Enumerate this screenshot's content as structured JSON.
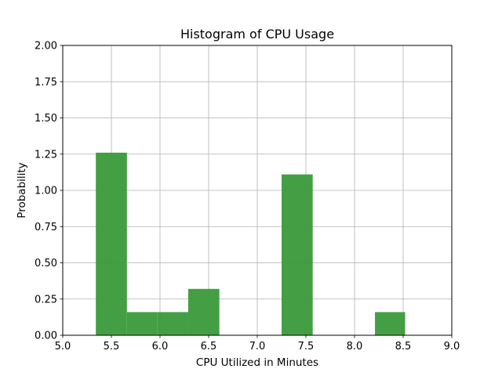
{
  "chart_data": {
    "type": "bar",
    "title": "Histogram of CPU Usage",
    "xlabel": "CPU Utilized in Minutes",
    "ylabel": "Probability",
    "xlim": [
      5.0,
      9.0
    ],
    "ylim": [
      0.0,
      2.0
    ],
    "xticks": [
      "5.0",
      "5.5",
      "6.0",
      "6.5",
      "7.0",
      "7.5",
      "8.0",
      "8.5",
      "9.0"
    ],
    "yticks": [
      "0.00",
      "0.25",
      "0.50",
      "0.75",
      "1.00",
      "1.25",
      "1.50",
      "1.75",
      "2.00"
    ],
    "grid": true,
    "bar_color": "#3a9a3a",
    "bins": [
      {
        "start": 5.34,
        "end": 5.66,
        "value": 1.26
      },
      {
        "start": 5.66,
        "end": 5.97,
        "value": 0.16
      },
      {
        "start": 5.97,
        "end": 6.29,
        "value": 0.16
      },
      {
        "start": 6.29,
        "end": 6.61,
        "value": 0.32
      },
      {
        "start": 6.61,
        "end": 6.93,
        "value": 0.0
      },
      {
        "start": 6.93,
        "end": 7.25,
        "value": 0.0
      },
      {
        "start": 7.25,
        "end": 7.57,
        "value": 1.11
      },
      {
        "start": 7.57,
        "end": 7.89,
        "value": 0.0
      },
      {
        "start": 7.89,
        "end": 8.21,
        "value": 0.0
      },
      {
        "start": 8.21,
        "end": 8.52,
        "value": 0.16
      }
    ]
  }
}
